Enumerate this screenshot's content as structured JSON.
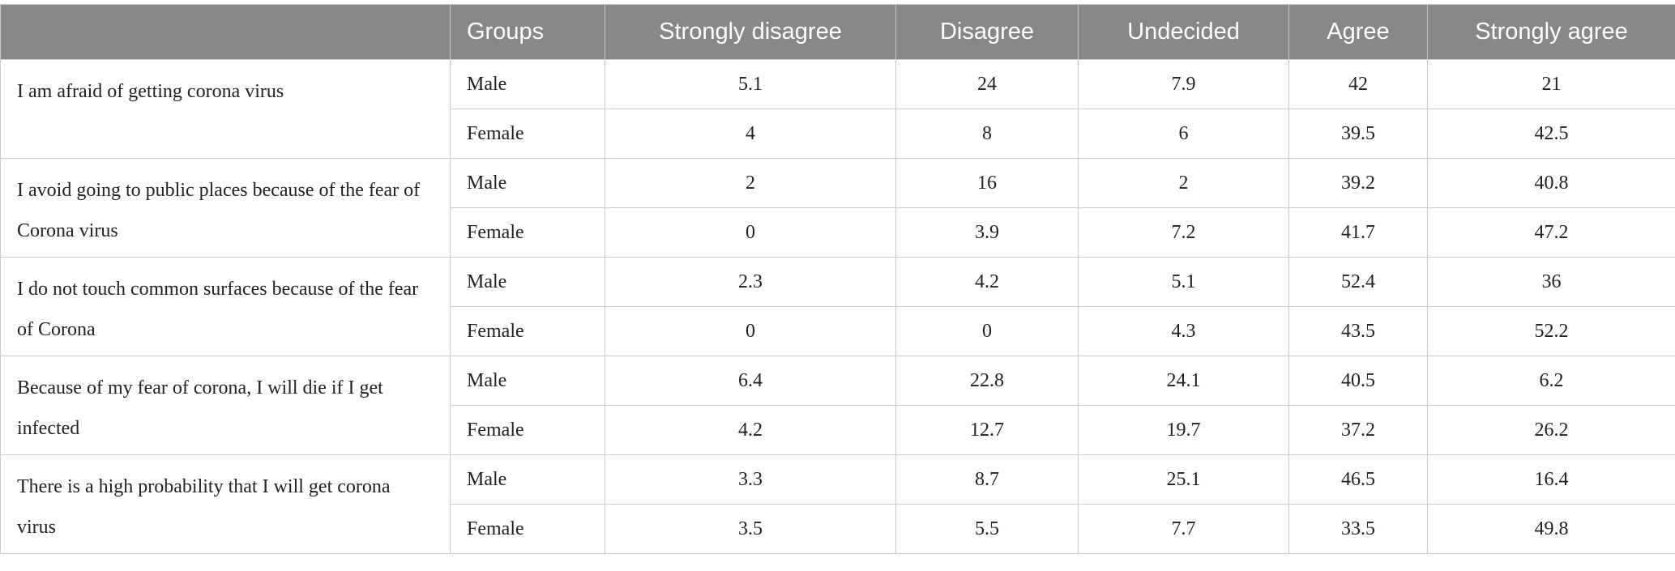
{
  "table": {
    "header": [
      "",
      "Groups",
      "Strongly disagree",
      "Disagree",
      "Undecided",
      "Agree",
      "Strongly agree"
    ],
    "items": [
      {
        "statement": "I am afraid of getting corona virus",
        "rows": [
          {
            "group": "Male",
            "values": [
              5.1,
              24,
              7.9,
              42,
              21
            ]
          },
          {
            "group": "Female",
            "values": [
              4,
              8,
              6,
              39.5,
              42.5
            ]
          }
        ]
      },
      {
        "statement": "I avoid going to public places because of the fear of Corona virus",
        "rows": [
          {
            "group": "Male",
            "values": [
              2,
              16,
              2,
              39.2,
              40.8
            ]
          },
          {
            "group": "Female",
            "values": [
              0,
              3.9,
              7.2,
              41.7,
              47.2
            ]
          }
        ]
      },
      {
        "statement": "I do not touch common surfaces because of the fear of Corona",
        "rows": [
          {
            "group": "Male",
            "values": [
              2.3,
              4.2,
              5.1,
              52.4,
              36
            ]
          },
          {
            "group": "Female",
            "values": [
              0,
              0,
              4.3,
              43.5,
              52.2
            ]
          }
        ]
      },
      {
        "statement": "Because of my fear of corona, I will die if I get infected",
        "rows": [
          {
            "group": "Male",
            "values": [
              6.4,
              22.8,
              24.1,
              40.5,
              6.2
            ]
          },
          {
            "group": "Female",
            "values": [
              4.2,
              12.7,
              19.7,
              37.2,
              26.2
            ]
          }
        ]
      },
      {
        "statement": "There is a high probability that I will get corona virus",
        "rows": [
          {
            "group": "Male",
            "values": [
              3.3,
              8.7,
              25.1,
              46.5,
              16.4
            ]
          },
          {
            "group": "Female",
            "values": [
              3.5,
              5.5,
              7.7,
              33.5,
              49.8
            ]
          }
        ]
      }
    ]
  }
}
